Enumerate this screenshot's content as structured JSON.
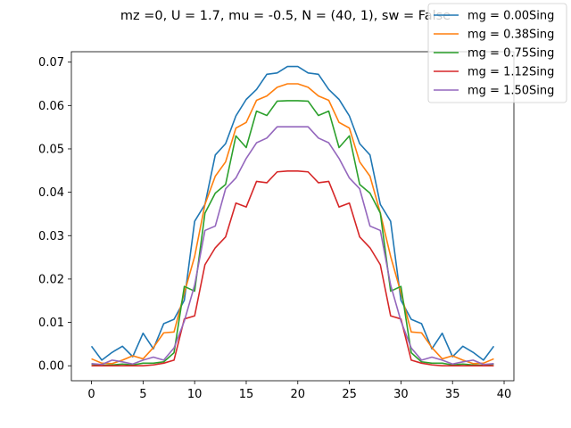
{
  "chart_data": {
    "type": "line",
    "title": "mz =0, U = 1.7, mu = -0.5, N = (40, 1), sw = False",
    "xlabel": "",
    "ylabel": "",
    "xlim": [
      -1.95,
      40.95
    ],
    "ylim": [
      -0.00345,
      0.0724
    ],
    "xticks": [
      0,
      5,
      10,
      15,
      20,
      25,
      30,
      35,
      40
    ],
    "yticks": [
      0.0,
      0.01,
      0.02,
      0.03,
      0.04,
      0.05,
      0.06,
      0.07
    ],
    "ytick_labels": [
      "0.00",
      "0.01",
      "0.02",
      "0.03",
      "0.04",
      "0.05",
      "0.06",
      "0.07"
    ],
    "grid": false,
    "legend_position": "top-right",
    "x": [
      0,
      1,
      2,
      3,
      4,
      5,
      6,
      7,
      8,
      9,
      10,
      11,
      12,
      13,
      14,
      15,
      16,
      17,
      18,
      19,
      20,
      21,
      22,
      23,
      24,
      25,
      26,
      27,
      28,
      29,
      30,
      31,
      32,
      33,
      34,
      35,
      36,
      37,
      38,
      39
    ],
    "series": [
      {
        "name": "mg = 0.00Sing",
        "color": "#1f77b4",
        "values": [
          0.0045,
          0.0013,
          0.0031,
          0.0045,
          0.0021,
          0.0075,
          0.0039,
          0.0097,
          0.0107,
          0.0151,
          0.0333,
          0.0372,
          0.0486,
          0.0512,
          0.0576,
          0.0614,
          0.0637,
          0.0672,
          0.0675,
          0.069,
          0.069,
          0.0675,
          0.0672,
          0.0637,
          0.0614,
          0.0576,
          0.0512,
          0.0486,
          0.0372,
          0.0333,
          0.0151,
          0.0107,
          0.0097,
          0.0039,
          0.0075,
          0.0021,
          0.0045,
          0.0031,
          0.0013,
          0.0045
        ]
      },
      {
        "name": "mg = 0.38Sing",
        "color": "#ff7f0e",
        "values": [
          0.0016,
          0.0006,
          0.0005,
          0.0013,
          0.0023,
          0.0016,
          0.0042,
          0.0076,
          0.0078,
          0.0168,
          0.0252,
          0.0372,
          0.0437,
          0.047,
          0.0548,
          0.0561,
          0.0612,
          0.0622,
          0.0642,
          0.065,
          0.065,
          0.0642,
          0.0622,
          0.0612,
          0.0561,
          0.0548,
          0.047,
          0.0437,
          0.0352,
          0.0252,
          0.0168,
          0.0078,
          0.0076,
          0.0042,
          0.0016,
          0.0023,
          0.0013,
          0.0005,
          0.0006,
          0.0016
        ]
      },
      {
        "name": "mg = 0.75Sing",
        "color": "#2ca02c",
        "values": [
          0.0004,
          0.0001,
          0.0002,
          0.0004,
          0.0002,
          0.0006,
          0.0006,
          0.0009,
          0.003,
          0.0183,
          0.0172,
          0.0352,
          0.0398,
          0.0418,
          0.053,
          0.0503,
          0.0587,
          0.0577,
          0.061,
          0.0611,
          0.0611,
          0.061,
          0.0577,
          0.0587,
          0.0503,
          0.053,
          0.0418,
          0.0398,
          0.0352,
          0.0172,
          0.0183,
          0.003,
          0.0009,
          0.0006,
          0.0006,
          0.0002,
          0.0004,
          0.0002,
          0.0001,
          0.0004
        ]
      },
      {
        "name": "mg = 1.12Sing",
        "color": "#d62728",
        "values": [
          0.0,
          0.0,
          0.0,
          0.0,
          0.0,
          0.0,
          0.0002,
          0.0006,
          0.0013,
          0.0108,
          0.0115,
          0.0233,
          0.0272,
          0.0297,
          0.0375,
          0.0366,
          0.0425,
          0.0422,
          0.0447,
          0.0449,
          0.0449,
          0.0447,
          0.0422,
          0.0425,
          0.0366,
          0.0375,
          0.0297,
          0.0272,
          0.0233,
          0.0115,
          0.0108,
          0.0013,
          0.0006,
          0.0002,
          0.0,
          0.0,
          0.0,
          0.0,
          0.0,
          0.0
        ]
      },
      {
        "name": "mg = 1.50Sing",
        "color": "#9467bd",
        "values": [
          0.0005,
          0.0003,
          0.0013,
          0.0009,
          0.0004,
          0.0013,
          0.002,
          0.0013,
          0.0041,
          0.0103,
          0.0186,
          0.0312,
          0.0322,
          0.0408,
          0.0433,
          0.0478,
          0.0514,
          0.0525,
          0.0551,
          0.0551,
          0.0551,
          0.0551,
          0.0525,
          0.0514,
          0.0478,
          0.0433,
          0.0408,
          0.0322,
          0.0312,
          0.0186,
          0.0103,
          0.0041,
          0.0013,
          0.002,
          0.0013,
          0.0004,
          0.0009,
          0.0013,
          0.0003,
          0.0005
        ]
      }
    ]
  }
}
